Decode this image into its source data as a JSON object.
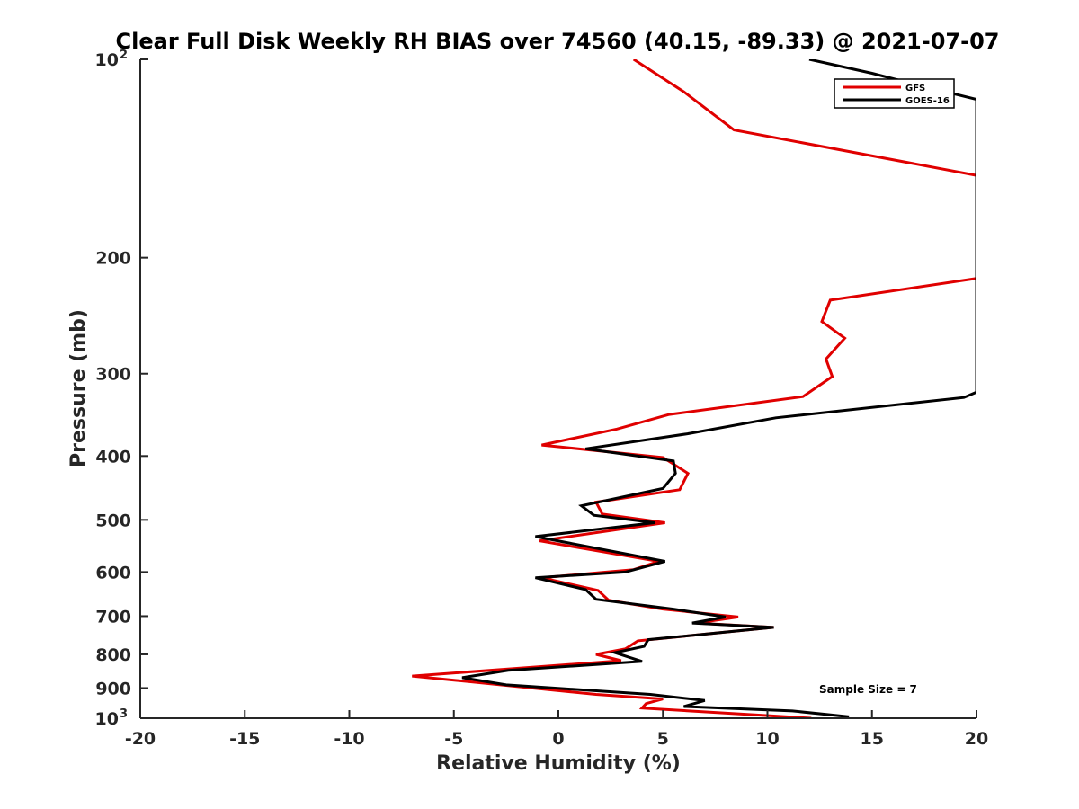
{
  "chart_data": {
    "type": "line",
    "title": "Clear Full Disk Weekly RH BIAS over 74560 (40.15, -89.33) @ 2021-07-07",
    "xlabel": "Relative Humidity (%)",
    "ylabel": "Pressure (mb)",
    "xlim": [
      -20,
      20
    ],
    "ylim": [
      100,
      1000
    ],
    "y_scale": "log",
    "y_reversed": true,
    "grid": false,
    "legend_position": "top-right",
    "x_ticks": [
      "-20",
      "-15",
      "-10",
      "-5",
      "0",
      "5",
      "10",
      "15",
      "20"
    ],
    "y_ticks": [
      {
        "value": 100,
        "label": "10",
        "sup": "2"
      },
      {
        "value": 200,
        "label": "200",
        "sup": ""
      },
      {
        "value": 300,
        "label": "300",
        "sup": ""
      },
      {
        "value": 400,
        "label": "400",
        "sup": ""
      },
      {
        "value": 500,
        "label": "500",
        "sup": ""
      },
      {
        "value": 600,
        "label": "600",
        "sup": ""
      },
      {
        "value": 700,
        "label": "700",
        "sup": ""
      },
      {
        "value": 800,
        "label": "800",
        "sup": ""
      },
      {
        "value": 900,
        "label": "900",
        "sup": ""
      },
      {
        "value": 1000,
        "label": "10",
        "sup": "3"
      }
    ],
    "annotation": "Sample Size = 7",
    "series": [
      {
        "name": "GFS",
        "color": "#e00000",
        "points": [
          [
            3.6,
            100
          ],
          [
            6.0,
            112
          ],
          [
            8.4,
            128
          ],
          [
            20.0,
            150
          ],
          [
            20.0,
            215
          ],
          [
            13.0,
            232
          ],
          [
            12.6,
            250
          ],
          [
            13.7,
            265
          ],
          [
            12.8,
            285
          ],
          [
            13.1,
            303
          ],
          [
            11.7,
            325
          ],
          [
            5.3,
            346
          ],
          [
            2.8,
            364
          ],
          [
            -0.8,
            385
          ],
          [
            5.0,
            402
          ],
          [
            6.2,
            425
          ],
          [
            5.8,
            450
          ],
          [
            1.8,
            470
          ],
          [
            2.1,
            490
          ],
          [
            5.1,
            505
          ],
          [
            -0.9,
            538
          ],
          [
            4.8,
            578
          ],
          [
            3.6,
            595
          ],
          [
            -0.8,
            612
          ],
          [
            1.9,
            640
          ],
          [
            2.4,
            662
          ],
          [
            5.0,
            683
          ],
          [
            8.6,
            702
          ],
          [
            6.6,
            717
          ],
          [
            10.3,
            728
          ],
          [
            3.8,
            763
          ],
          [
            3.2,
            785
          ],
          [
            1.8,
            800
          ],
          [
            3.0,
            818
          ],
          [
            -1.1,
            836
          ],
          [
            -7.0,
            863
          ],
          [
            -4.3,
            880
          ],
          [
            1.8,
            920
          ],
          [
            5.0,
            935
          ],
          [
            4.2,
            950
          ],
          [
            4.0,
            965
          ],
          [
            12.1,
            1000
          ]
        ]
      },
      {
        "name": "GOES-16",
        "color": "#000000",
        "points": [
          [
            12.0,
            100
          ],
          [
            15.0,
            105
          ],
          [
            17.5,
            110
          ],
          [
            20.0,
            115
          ],
          [
            20.0,
            320
          ],
          [
            19.4,
            326
          ],
          [
            10.4,
            350
          ],
          [
            6.2,
            370
          ],
          [
            1.3,
            390
          ],
          [
            5.5,
            407
          ],
          [
            5.6,
            425
          ],
          [
            5.0,
            448
          ],
          [
            1.1,
            476
          ],
          [
            1.7,
            492
          ],
          [
            4.6,
            505
          ],
          [
            -1.1,
            530
          ],
          [
            5.1,
            578
          ],
          [
            3.2,
            600
          ],
          [
            -1.1,
            612
          ],
          [
            1.3,
            638
          ],
          [
            1.8,
            660
          ],
          [
            5.5,
            683
          ],
          [
            8.0,
            702
          ],
          [
            6.4,
            717
          ],
          [
            10.3,
            728
          ],
          [
            4.3,
            760
          ],
          [
            4.1,
            778
          ],
          [
            2.7,
            795
          ],
          [
            4.0,
            820
          ],
          [
            -2.4,
            846
          ],
          [
            -4.6,
            868
          ],
          [
            -2.5,
            890
          ],
          [
            4.4,
            920
          ],
          [
            7.0,
            940
          ],
          [
            6.0,
            960
          ],
          [
            11.2,
            975
          ],
          [
            13.9,
            995
          ]
        ]
      }
    ]
  }
}
